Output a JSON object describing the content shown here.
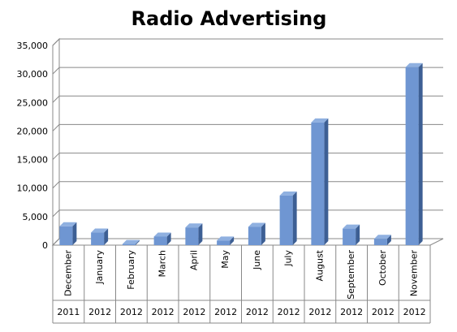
{
  "chart_data": {
    "type": "bar3d",
    "title": "Radio Advertising",
    "categories": [
      "December",
      "January",
      "February",
      "March",
      "April",
      "May",
      "June",
      "July",
      "August",
      "September",
      "October",
      "November"
    ],
    "category_years": [
      "2011",
      "2012",
      "2012",
      "2012",
      "2012",
      "2012",
      "2012",
      "2012",
      "2012",
      "2012",
      "2012",
      "2012"
    ],
    "values": [
      3300,
      2200,
      200,
      1500,
      3100,
      800,
      3200,
      8700,
      21500,
      2900,
      1100,
      31200
    ],
    "color": "#6f96d2",
    "ylim": [
      0,
      35000
    ],
    "yticks": [
      0,
      {
        "value": 5000,
        "label": "5,000"
      },
      {
        "value": 10000,
        "label": "10,000"
      },
      {
        "value": 15000,
        "label": "15,000"
      },
      {
        "value": 20000,
        "label": "20,000"
      },
      {
        "value": 25000,
        "label": "25,000"
      },
      {
        "value": 30000,
        "label": "30,000"
      },
      {
        "value": 35000,
        "label": "35,000"
      }
    ],
    "grid": true
  }
}
